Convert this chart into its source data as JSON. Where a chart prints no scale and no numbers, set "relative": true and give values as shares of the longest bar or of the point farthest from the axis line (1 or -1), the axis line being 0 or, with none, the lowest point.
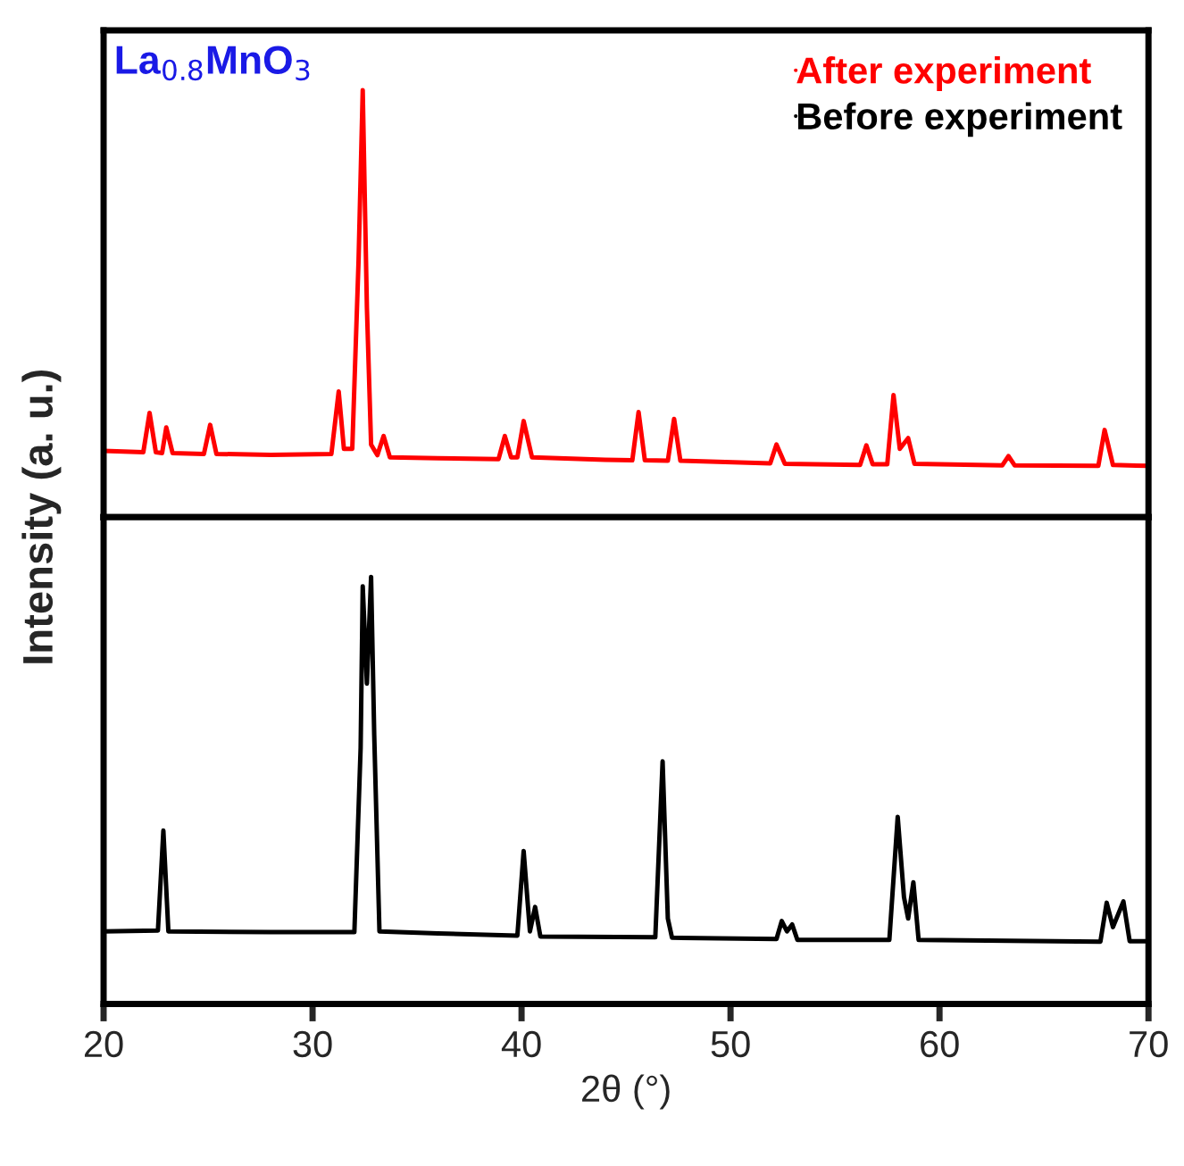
{
  "chart_data": [
    {
      "type": "line",
      "relative": true,
      "xlim": [
        20,
        70
      ],
      "tick_labels": false,
      "legend": "top right",
      "annotations": [
        "La$_{0.8}$MnO$_{3}$"
      ],
      "series": [
        {
          "name": "After experiment",
          "color": "#ff0000",
          "x": [
            20,
            21.9,
            22.2,
            22.5,
            22.8,
            23.0,
            23.3,
            24.8,
            25.1,
            25.4,
            28,
            30.9,
            31.25,
            31.5,
            31.9,
            32.2,
            32.4,
            32.6,
            32.8,
            33.1,
            33.4,
            33.7,
            36,
            38.9,
            39.2,
            39.5,
            39.8,
            40.1,
            40.5,
            44,
            45.3,
            45.6,
            45.9,
            47.0,
            47.3,
            47.6,
            51.9,
            52.2,
            52.6,
            56.2,
            56.5,
            56.8,
            57.5,
            57.8,
            58.1,
            58.5,
            58.8,
            63.0,
            63.3,
            63.6,
            67.6,
            67.9,
            68.3,
            70
          ],
          "values": [
            0.155,
            0.152,
            0.244,
            0.152,
            0.15,
            0.21,
            0.15,
            0.148,
            0.216,
            0.148,
            0.146,
            0.148,
            0.294,
            0.16,
            0.16,
            0.6,
            1.0,
            0.49,
            0.17,
            0.145,
            0.19,
            0.14,
            0.138,
            0.136,
            0.19,
            0.14,
            0.14,
            0.225,
            0.14,
            0.134,
            0.133,
            0.246,
            0.133,
            0.132,
            0.23,
            0.132,
            0.126,
            0.17,
            0.125,
            0.122,
            0.168,
            0.124,
            0.124,
            0.286,
            0.16,
            0.185,
            0.125,
            0.121,
            0.143,
            0.121,
            0.12,
            0.204,
            0.122,
            0.12
          ]
        }
      ]
    },
    {
      "type": "line",
      "relative": true,
      "xlim": [
        20,
        70
      ],
      "xticks": [
        20,
        30,
        40,
        50,
        60,
        70
      ],
      "tick_labels": "x",
      "xlabel": "2θ (°)",
      "ylabel": "Intensity (a. u.)",
      "series": [
        {
          "name": "Before experiment",
          "color": "#000000",
          "x": [
            20,
            22.6,
            22.86,
            23.1,
            28,
            32.0,
            32.3,
            32.4,
            32.6,
            32.8,
            32.95,
            33.2,
            36,
            39.8,
            40.1,
            40.4,
            40.65,
            40.9,
            46.4,
            46.75,
            47.0,
            47.2,
            52.2,
            52.45,
            52.7,
            52.95,
            53.2,
            57.6,
            58.0,
            58.3,
            58.5,
            58.75,
            59.0,
            67.7,
            68.0,
            68.3,
            68.8,
            69.1,
            70
          ],
          "values": [
            0.17,
            0.172,
            0.406,
            0.17,
            0.168,
            0.168,
            0.6,
            0.978,
            0.75,
            1.0,
            0.63,
            0.17,
            0.165,
            0.16,
            0.358,
            0.17,
            0.227,
            0.158,
            0.156,
            0.568,
            0.2,
            0.155,
            0.152,
            0.194,
            0.17,
            0.186,
            0.15,
            0.15,
            0.438,
            0.25,
            0.2,
            0.285,
            0.15,
            0.146,
            0.237,
            0.18,
            0.24,
            0.147,
            0.147
          ]
        }
      ]
    }
  ]
}
